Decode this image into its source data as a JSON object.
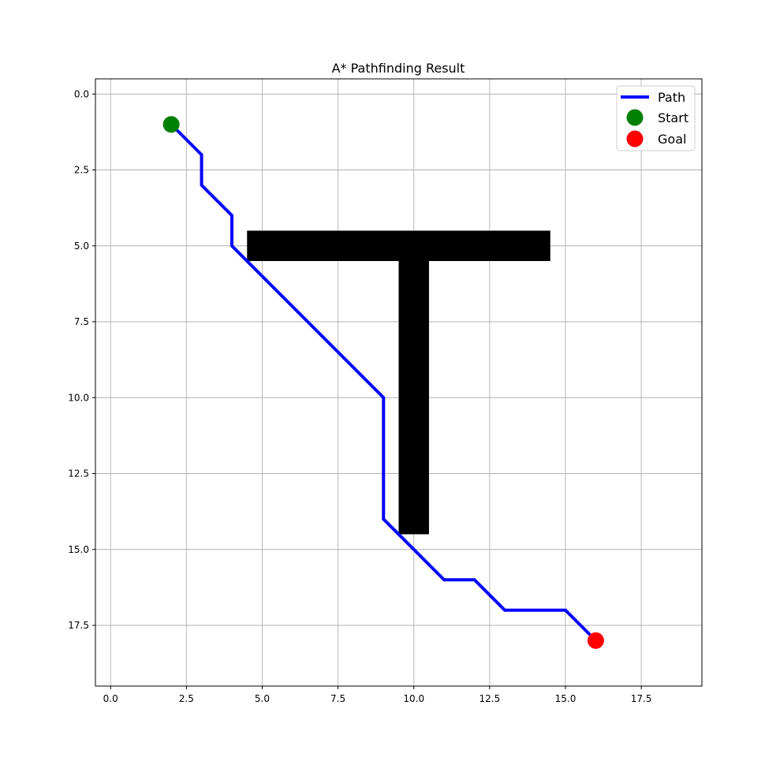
{
  "chart_data": {
    "type": "line",
    "title": "A* Pathfinding Result",
    "xlabel": "",
    "ylabel": "",
    "xlim": [
      -0.5,
      19.5
    ],
    "ylim": [
      19.5,
      -0.5
    ],
    "y_inverted": true,
    "grid": true,
    "xticks": [
      "0.0",
      "2.5",
      "5.0",
      "7.5",
      "10.0",
      "12.5",
      "15.0",
      "17.5"
    ],
    "yticks": [
      "0.0",
      "2.5",
      "5.0",
      "7.5",
      "10.0",
      "12.5",
      "15.0",
      "17.5"
    ],
    "legend_placement": "top-right",
    "obstacles": [
      {
        "x0": 4.5,
        "x1": 14.5,
        "y0": 4.5,
        "y1": 5.5,
        "color": "#000000"
      },
      {
        "x0": 9.5,
        "x1": 10.5,
        "y0": 5.5,
        "y1": 14.5,
        "color": "#000000"
      }
    ],
    "series": [
      {
        "name": "Path",
        "color": "#0000ff",
        "points": [
          [
            2,
            1
          ],
          [
            3,
            2
          ],
          [
            3,
            3
          ],
          [
            4,
            4
          ],
          [
            4,
            5
          ],
          [
            9,
            10
          ],
          [
            9,
            14
          ],
          [
            11,
            16
          ],
          [
            12,
            16
          ],
          [
            13,
            17
          ],
          [
            15,
            17
          ],
          [
            16,
            18
          ]
        ]
      }
    ],
    "markers": [
      {
        "name": "Start",
        "x": 2,
        "y": 1,
        "color": "#008000"
      },
      {
        "name": "Goal",
        "x": 16,
        "y": 18,
        "color": "#ff0000"
      }
    ]
  }
}
